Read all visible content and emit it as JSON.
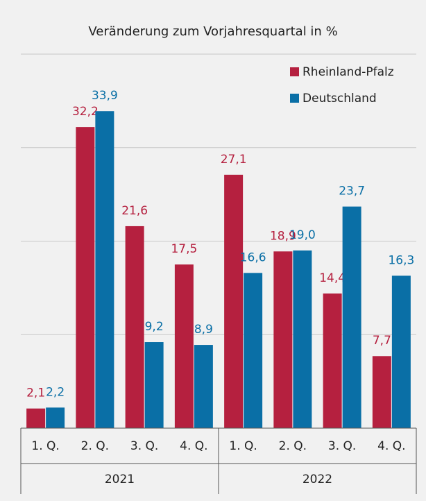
{
  "chart_data": {
    "type": "bar",
    "title": "Veränderung zum Vorjahresquartal in %",
    "categories": [
      "1. Q.",
      "2. Q.",
      "3. Q.",
      "4. Q.",
      "1. Q.",
      "2. Q.",
      "3. Q.",
      "4. Q."
    ],
    "x_groups": [
      "2021",
      "2022"
    ],
    "series": [
      {
        "name": "Rheinland-Pfalz",
        "color": "#b5203f",
        "values": [
          2.1,
          32.2,
          21.6,
          17.5,
          27.1,
          18.9,
          14.4,
          7.7
        ],
        "value_labels": [
          "2,1",
          "32,2",
          "21,6",
          "17,5",
          "27,1",
          "18,9",
          "14,4",
          "7,7"
        ]
      },
      {
        "name": "Deutschland",
        "color": "#0a6fa6",
        "values": [
          2.2,
          33.9,
          9.2,
          8.9,
          16.6,
          19.0,
          23.7,
          16.3
        ],
        "value_labels": [
          "2,2",
          "33,9",
          "9,2",
          "8,9",
          "16,6",
          "19,0",
          "23,7",
          "16,3"
        ]
      }
    ],
    "ylim": [
      0,
      40
    ],
    "yticks": [
      0,
      10,
      20,
      30,
      40
    ],
    "grid": true,
    "legend": "top-right"
  }
}
